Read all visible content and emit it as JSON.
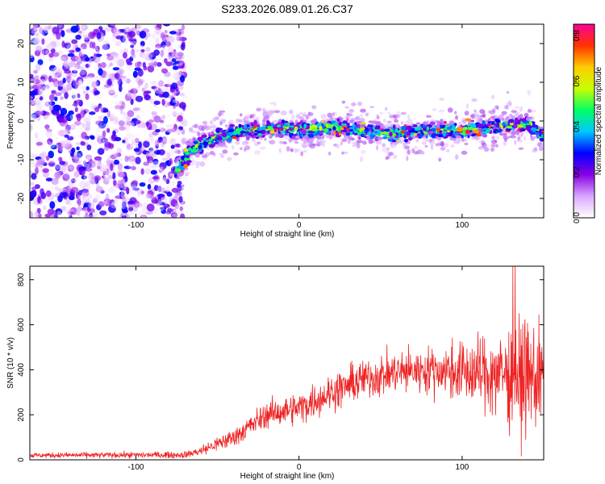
{
  "figure": {
    "title": "S233.2026.089.01.26.C37"
  },
  "chart_data": [
    {
      "type": "heatmap",
      "title": "S233.2026.089.01.26.C37",
      "xlabel": "Height of straight line (km)",
      "ylabel": "Frequency (Hz)",
      "xlim": [
        -165,
        150
      ],
      "ylim": [
        -25,
        25
      ],
      "x_ticks": [
        -100,
        0,
        100
      ],
      "x_tick_labels": [
        "-100",
        "0",
        "100"
      ],
      "y_ticks": [
        -20,
        -10,
        0,
        10,
        20
      ],
      "y_tick_labels": [
        "-20",
        "-10",
        "0",
        "10",
        "20"
      ],
      "colorbar": {
        "label": "Normalized spectral amplitude",
        "range": [
          0,
          0.85
        ],
        "ticks": [
          0.0,
          0.2,
          0.4,
          0.6,
          0.8
        ],
        "tick_labels": [
          "0.0",
          "0.2",
          "0.4",
          "0.6",
          "0.8"
        ],
        "colormap": [
          "#ffffff",
          "#d9a8ff",
          "#8a00e6",
          "#0000ff",
          "#00c8ff",
          "#00ff66",
          "#c8ff00",
          "#ffcc00",
          "#ff3300",
          "#ff0099"
        ]
      },
      "signal_track": {
        "description_of_trend": "band centre frequency versus height",
        "x": [
          -75,
          -65,
          -50,
          -30,
          -10,
          0,
          20,
          40,
          60,
          80,
          100,
          120,
          140,
          150
        ],
        "y": [
          -13,
          -7,
          -4,
          -2.5,
          -2,
          -2.5,
          -1.5,
          -2.5,
          -3.5,
          -2.5,
          -2.5,
          -1.5,
          -0.5,
          -4
        ],
        "peak_amplitude": 0.85
      },
      "noise_region": {
        "x_from": -165,
        "x_to": -70,
        "level": 0.3
      }
    },
    {
      "type": "line",
      "xlabel": "Height of straight line (km)",
      "ylabel": "SNR (10 * v/v)",
      "xlim": [
        -165,
        150
      ],
      "ylim": [
        0,
        860
      ],
      "x_ticks": [
        -100,
        0,
        100
      ],
      "x_tick_labels": [
        "-100",
        "0",
        "100"
      ],
      "y_ticks": [
        0,
        200,
        400,
        600,
        800
      ],
      "y_tick_labels": [
        "0",
        "200",
        "400",
        "600",
        "800"
      ],
      "color": "#ee2222",
      "trend": {
        "x": [
          -165,
          -70,
          -60,
          -40,
          -20,
          0,
          20,
          40,
          60,
          80,
          100,
          120,
          140,
          150
        ],
        "y": [
          20,
          22,
          40,
          100,
          200,
          230,
          300,
          360,
          390,
          400,
          390,
          380,
          370,
          360
        ]
      },
      "noise_scale": {
        "x": [
          -165,
          -70,
          -40,
          0,
          30,
          80,
          110,
          130,
          150
        ],
        "y": [
          8,
          10,
          30,
          50,
          60,
          70,
          110,
          160,
          180
        ]
      },
      "max_value": 860
    }
  ]
}
